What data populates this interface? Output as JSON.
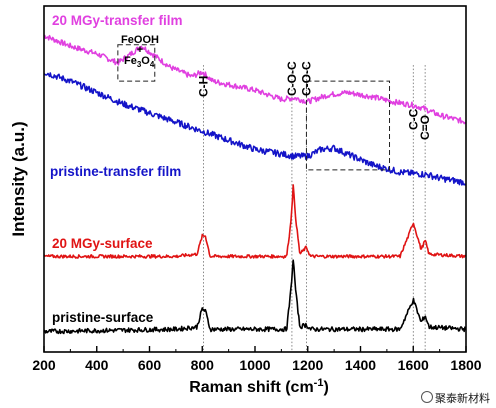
{
  "chart_data": {
    "type": "line",
    "xlabel": "Raman shift (cm",
    "xlabel_sup": "-1",
    "xlabel_end": ")",
    "ylabel": "Intensity (a.u.)",
    "xlim": [
      200,
      1800
    ],
    "x_ticks": [
      "200",
      "400",
      "600",
      "800",
      "1000",
      "1200",
      "1400",
      "1600",
      "1800"
    ],
    "y_ticks_labeled": false,
    "grid": false,
    "series": [
      {
        "name": "20 MGy-transfer film",
        "color": "#e040e0",
        "points": [
          [
            200,
            8.95
          ],
          [
            300,
            8.72
          ],
          [
            400,
            8.55
          ],
          [
            480,
            8.35
          ],
          [
            530,
            8.55
          ],
          [
            570,
            8.72
          ],
          [
            610,
            8.55
          ],
          [
            680,
            8.25
          ],
          [
            760,
            8.05
          ],
          [
            800,
            8.15
          ],
          [
            840,
            7.95
          ],
          [
            1000,
            7.75
          ],
          [
            1100,
            7.55
          ],
          [
            1150,
            7.58
          ],
          [
            1200,
            7.5
          ],
          [
            1280,
            7.65
          ],
          [
            1350,
            7.7
          ],
          [
            1450,
            7.6
          ],
          [
            1520,
            7.5
          ],
          [
            1600,
            7.42
          ],
          [
            1640,
            7.35
          ],
          [
            1700,
            7.2
          ],
          [
            1800,
            7.05
          ]
        ]
      },
      {
        "name": "pristine-transfer film",
        "color": "#1414c8",
        "points": [
          [
            200,
            8.15
          ],
          [
            300,
            7.95
          ],
          [
            400,
            7.7
          ],
          [
            500,
            7.45
          ],
          [
            600,
            7.25
          ],
          [
            700,
            7.05
          ],
          [
            800,
            6.85
          ],
          [
            900,
            6.65
          ],
          [
            1000,
            6.45
          ],
          [
            1100,
            6.35
          ],
          [
            1150,
            6.3
          ],
          [
            1200,
            6.3
          ],
          [
            1250,
            6.45
          ],
          [
            1300,
            6.48
          ],
          [
            1350,
            6.35
          ],
          [
            1450,
            6.1
          ],
          [
            1550,
            5.95
          ],
          [
            1600,
            5.92
          ],
          [
            1650,
            5.9
          ],
          [
            1700,
            5.82
          ],
          [
            1800,
            5.72
          ]
        ]
      },
      {
        "name": "20 MGy-surface",
        "color": "#e01414",
        "points": [
          [
            200,
            4.1
          ],
          [
            700,
            4.1
          ],
          [
            780,
            4.15
          ],
          [
            800,
            4.55
          ],
          [
            812,
            4.55
          ],
          [
            830,
            4.1
          ],
          [
            1120,
            4.1
          ],
          [
            1135,
            4.8
          ],
          [
            1145,
            5.65
          ],
          [
            1155,
            4.9
          ],
          [
            1170,
            4.15
          ],
          [
            1195,
            4.3
          ],
          [
            1210,
            4.1
          ],
          [
            1550,
            4.1
          ],
          [
            1585,
            4.6
          ],
          [
            1600,
            4.85
          ],
          [
            1615,
            4.55
          ],
          [
            1630,
            4.25
          ],
          [
            1645,
            4.45
          ],
          [
            1660,
            4.15
          ],
          [
            1800,
            4.1
          ]
        ]
      },
      {
        "name": "pristine-surface",
        "color": "#000000",
        "points": [
          [
            200,
            2.45
          ],
          [
            700,
            2.5
          ],
          [
            780,
            2.55
          ],
          [
            800,
            2.95
          ],
          [
            812,
            2.9
          ],
          [
            830,
            2.5
          ],
          [
            1120,
            2.5
          ],
          [
            1135,
            3.3
          ],
          [
            1145,
            4.05
          ],
          [
            1155,
            3.3
          ],
          [
            1170,
            2.55
          ],
          [
            1195,
            2.6
          ],
          [
            1210,
            2.5
          ],
          [
            1550,
            2.5
          ],
          [
            1585,
            2.95
          ],
          [
            1600,
            3.15
          ],
          [
            1615,
            2.9
          ],
          [
            1630,
            2.65
          ],
          [
            1645,
            2.8
          ],
          [
            1660,
            2.55
          ],
          [
            1800,
            2.5
          ]
        ]
      }
    ],
    "legend_labels": [
      {
        "text": "20 MGy-transfer film",
        "color": "#e040e0",
        "series": 0
      },
      {
        "text": "pristine-transfer film",
        "color": "#1414c8",
        "series": 1
      },
      {
        "text": "20 MGy-surface",
        "color": "#e01414",
        "series": 2
      },
      {
        "text": "pristine-surface",
        "color": "#000000",
        "series": 3
      }
    ],
    "annotations": {
      "feooh": "FeOOH",
      "plus": "+",
      "fe3o4": "Fe",
      "fe3o4_sub1": "3",
      "fe3o4_o": "O",
      "fe3o4_sub2": "4",
      "peaks": [
        {
          "label": "C-H",
          "x": 805
        },
        {
          "label": "C-O-C",
          "x": 1140
        },
        {
          "label": "C-O-C",
          "x": 1195
        },
        {
          "label": "C-C",
          "x": 1600
        },
        {
          "label": "C=O",
          "x": 1645
        }
      ],
      "box_feooh": {
        "x1": 480,
        "x2": 620,
        "y1": 7.95,
        "y2": 8.75
      },
      "box_co": {
        "x1": 1195,
        "x2": 1510,
        "y1": 6.0,
        "y2": 7.95
      }
    },
    "ylim": [
      2.0,
      9.6
    ]
  },
  "watermark": "聚泰新材料"
}
